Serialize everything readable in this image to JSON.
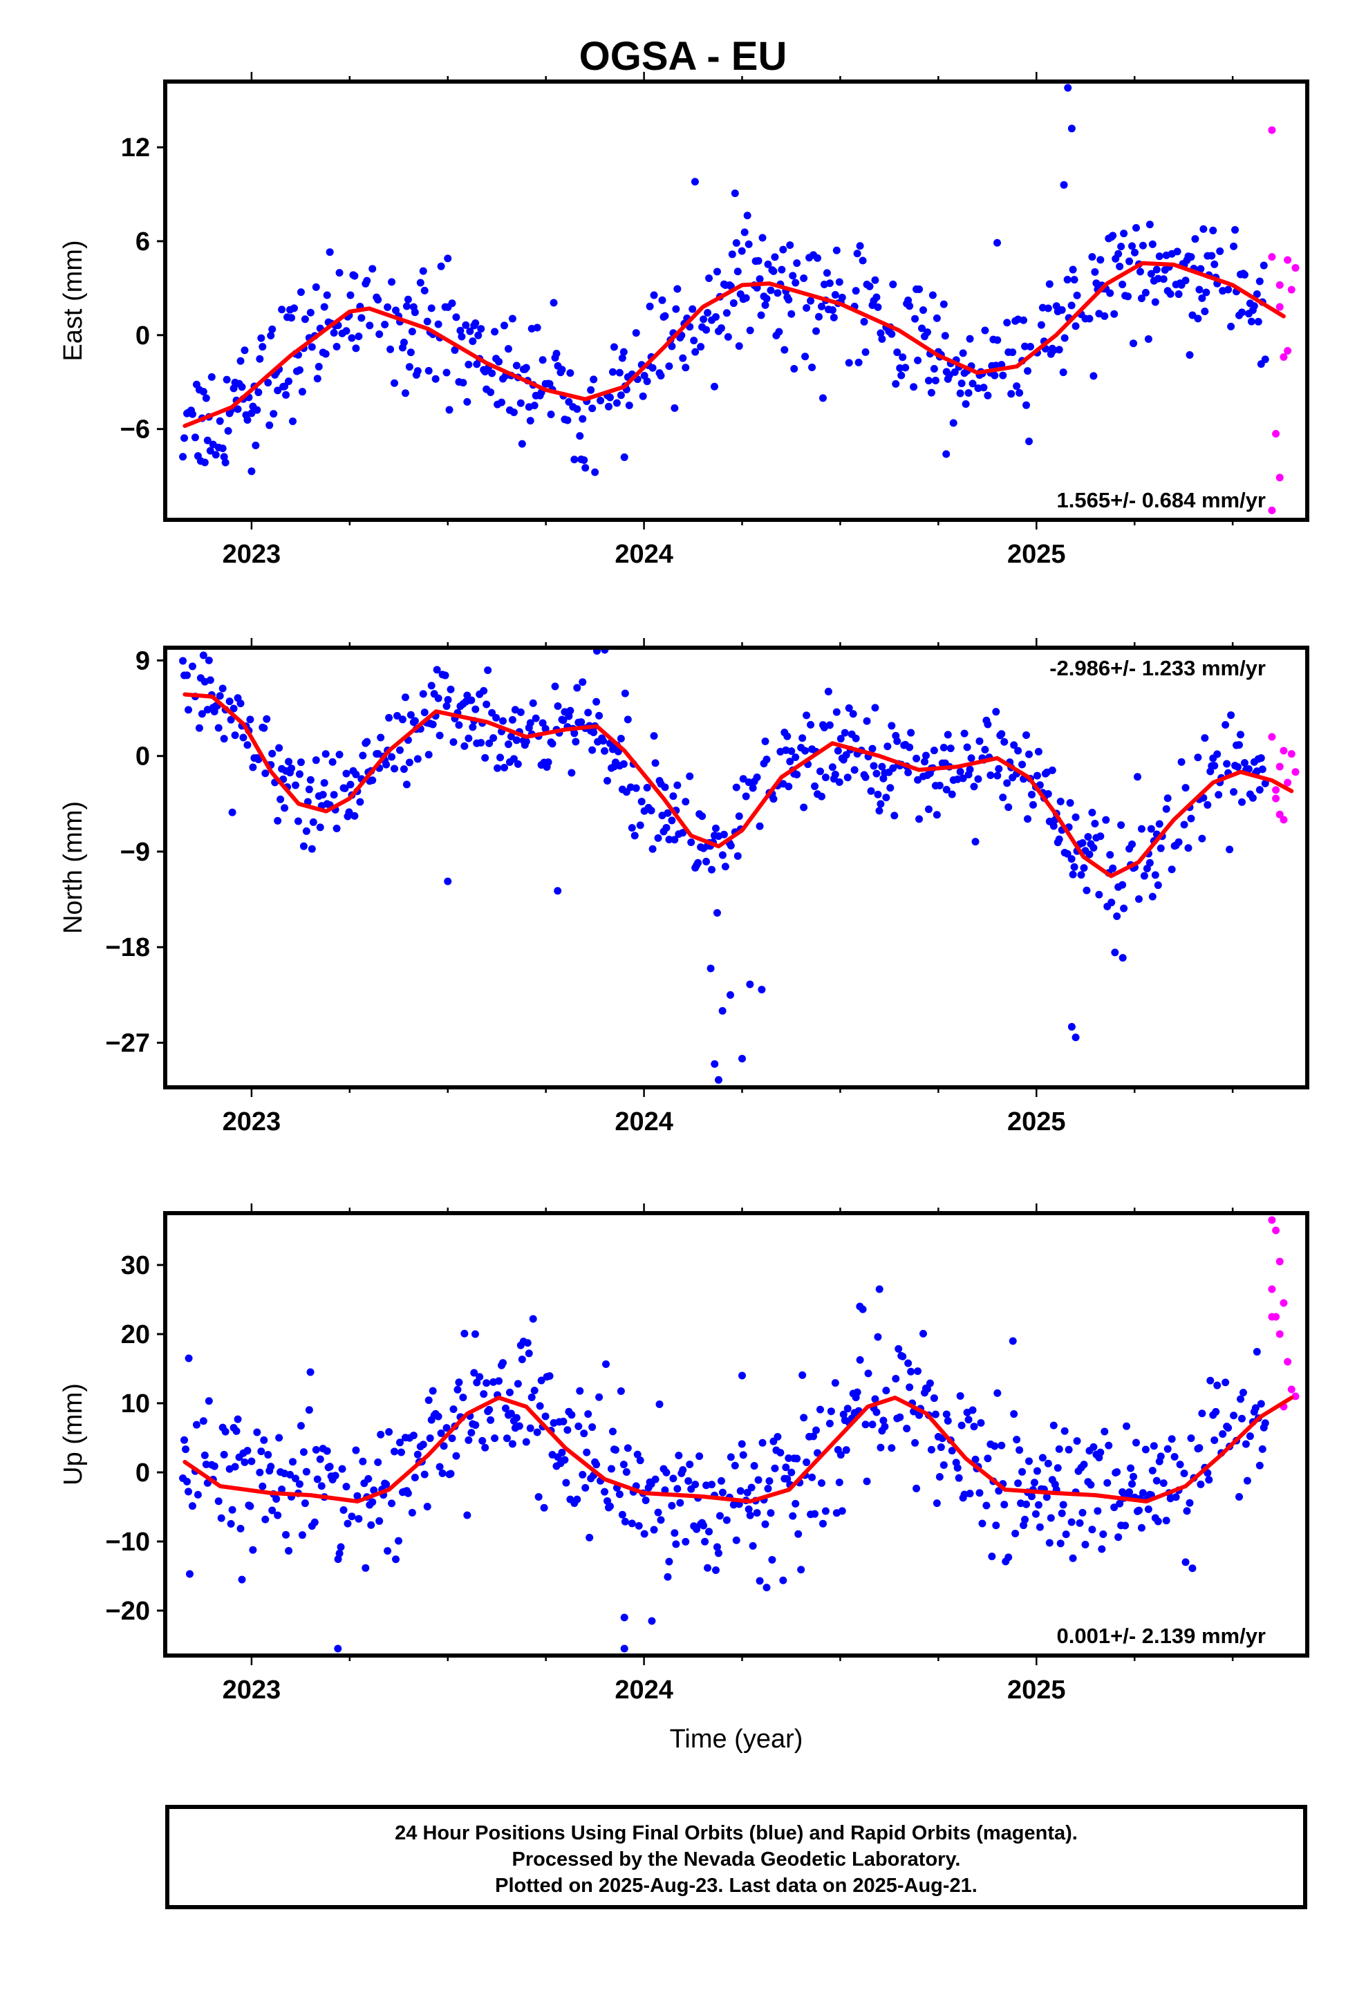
{
  "title": "OGSA - EU",
  "colors": {
    "final": "#0000ff",
    "rapid": "#ff00ff",
    "model": "#ff0000",
    "axes": "#000000"
  },
  "xlabel": "Time (year)",
  "footer": {
    "line1": "24 Hour Positions Using Final Orbits (blue) and Rapid Orbits (magenta).",
    "line2": "Processed by the Nevada Geodetic Laboratory.",
    "line3": "Plotted on 2025-Aug-23. Last data on 2025-Aug-21."
  },
  "chart_data": [
    {
      "type": "scatter",
      "ylabel": "East (mm)",
      "xlim": [
        2022.78,
        2025.69
      ],
      "ylim": [
        -11.8,
        16.2
      ],
      "yticks": [
        -6,
        0,
        6,
        12
      ],
      "ytick_labels": [
        "−6",
        "0",
        "6",
        "12"
      ],
      "xticks": [
        2023,
        2024,
        2025
      ],
      "xtick_labels": [
        "2023",
        "2024",
        "2025"
      ],
      "rate": "1.565+/- 0.684 mm/yr",
      "rate_pos": "bottom-right",
      "model_curve": [
        [
          2022.83,
          -5.8
        ],
        [
          2022.95,
          -4.6
        ],
        [
          2023.1,
          -1.3
        ],
        [
          2023.25,
          1.5
        ],
        [
          2023.3,
          1.7
        ],
        [
          2023.45,
          0.4
        ],
        [
          2023.6,
          -1.8
        ],
        [
          2023.75,
          -3.5
        ],
        [
          2023.85,
          -4.1
        ],
        [
          2023.95,
          -3.3
        ],
        [
          2024.05,
          -0.8
        ],
        [
          2024.15,
          1.8
        ],
        [
          2024.25,
          3.2
        ],
        [
          2024.32,
          3.3
        ],
        [
          2024.5,
          2.0
        ],
        [
          2024.65,
          0.3
        ],
        [
          2024.75,
          -1.3
        ],
        [
          2024.85,
          -2.4
        ],
        [
          2024.95,
          -2.0
        ],
        [
          2025.05,
          0.0
        ],
        [
          2025.18,
          3.3
        ],
        [
          2025.27,
          4.6
        ],
        [
          2025.35,
          4.5
        ],
        [
          2025.5,
          3.2
        ],
        [
          2025.63,
          1.2
        ]
      ],
      "amplitude": 1.9,
      "rapid": [
        [
          2025.6,
          5.0
        ],
        [
          2025.62,
          3.2
        ],
        [
          2025.6,
          13.1
        ],
        [
          2025.64,
          4.8
        ],
        [
          2025.63,
          -1.4
        ],
        [
          2025.61,
          -6.3
        ],
        [
          2025.62,
          -9.1
        ],
        [
          2025.6,
          -11.2
        ],
        [
          2025.65,
          2.9
        ],
        [
          2025.66,
          4.3
        ],
        [
          2025.62,
          1.8
        ],
        [
          2025.64,
          -1.0
        ]
      ],
      "extra_points": [
        [
          2023.5,
          4.9
        ],
        [
          2023.0,
          -8.7
        ],
        [
          2024.13,
          9.8
        ],
        [
          2025.08,
          15.8
        ],
        [
          2025.09,
          13.2
        ],
        [
          2025.07,
          9.6
        ],
        [
          2024.77,
          -7.6
        ],
        [
          2024.9,
          5.9
        ],
        [
          2023.95,
          -7.8
        ]
      ]
    },
    {
      "type": "scatter",
      "ylabel": "North (mm)",
      "xlim": [
        2022.78,
        2025.69
      ],
      "ylim": [
        -31.2,
        10.2
      ],
      "yticks": [
        -27,
        -18,
        -9,
        0,
        9
      ],
      "ytick_labels": [
        "−27",
        "−18",
        "−9",
        "0",
        "9"
      ],
      "xticks": [
        2023,
        2024,
        2025
      ],
      "xtick_labels": [
        "2023",
        "2024",
        "2025"
      ],
      "rate": "-2.986+/- 1.233 mm/yr",
      "rate_pos": "top-right",
      "model_curve": [
        [
          2022.83,
          5.8
        ],
        [
          2022.9,
          5.6
        ],
        [
          2022.98,
          3.0
        ],
        [
          2023.05,
          -1.5
        ],
        [
          2023.12,
          -4.5
        ],
        [
          2023.19,
          -5.2
        ],
        [
          2023.25,
          -4.0
        ],
        [
          2023.35,
          0.5
        ],
        [
          2023.47,
          4.2
        ],
        [
          2023.6,
          3.2
        ],
        [
          2023.7,
          1.8
        ],
        [
          2023.8,
          2.5
        ],
        [
          2023.88,
          2.8
        ],
        [
          2023.95,
          0.5
        ],
        [
          2024.05,
          -4.0
        ],
        [
          2024.12,
          -7.5
        ],
        [
          2024.19,
          -8.5
        ],
        [
          2024.25,
          -7.0
        ],
        [
          2024.35,
          -2.0
        ],
        [
          2024.48,
          1.2
        ],
        [
          2024.6,
          0.0
        ],
        [
          2024.7,
          -1.3
        ],
        [
          2024.8,
          -1.0
        ],
        [
          2024.9,
          -0.2
        ],
        [
          2024.98,
          -2.0
        ],
        [
          2025.05,
          -5.5
        ],
        [
          2025.12,
          -9.5
        ],
        [
          2025.19,
          -11.3
        ],
        [
          2025.26,
          -10.0
        ],
        [
          2025.35,
          -6.0
        ],
        [
          2025.45,
          -2.5
        ],
        [
          2025.52,
          -1.5
        ],
        [
          2025.6,
          -2.3
        ],
        [
          2025.65,
          -3.3
        ]
      ],
      "amplitude": 2.3,
      "rapid": [
        [
          2025.6,
          1.8
        ],
        [
          2025.62,
          -1.0
        ],
        [
          2025.61,
          -4.0
        ],
        [
          2025.63,
          0.5
        ],
        [
          2025.64,
          -2.5
        ],
        [
          2025.62,
          -5.5
        ],
        [
          2025.65,
          0.2
        ],
        [
          2025.61,
          -3.2
        ],
        [
          2025.63,
          -6.0
        ],
        [
          2025.66,
          -1.5
        ]
      ],
      "extra_points": [
        [
          2024.19,
          -30.5
        ],
        [
          2024.18,
          -29.0
        ],
        [
          2024.25,
          -28.5
        ],
        [
          2024.2,
          -24.0
        ],
        [
          2024.17,
          -20.0
        ],
        [
          2024.22,
          -22.5
        ],
        [
          2024.27,
          -21.5
        ],
        [
          2024.3,
          -22.0
        ],
        [
          2025.09,
          -25.5
        ],
        [
          2025.1,
          -26.5
        ],
        [
          2023.5,
          -11.8
        ],
        [
          2023.78,
          -12.7
        ],
        [
          2023.88,
          9.9
        ],
        [
          2023.9,
          10.0
        ],
        [
          2025.2,
          -18.5
        ],
        [
          2025.22,
          -19.0
        ]
      ]
    },
    {
      "type": "scatter",
      "ylabel": "Up (mm)",
      "xlim": [
        2022.78,
        2025.69
      ],
      "ylim": [
        -26.5,
        37.5
      ],
      "yticks": [
        -20,
        -10,
        0,
        10,
        20,
        30
      ],
      "ytick_labels": [
        "−20",
        "−10",
        "0",
        "10",
        "20",
        "30"
      ],
      "xticks": [
        2023,
        2024,
        2025
      ],
      "xtick_labels": [
        "2023",
        "2024",
        "2025"
      ],
      "rate": "0.001+/- 2.139 mm/yr",
      "rate_pos": "bottom-right",
      "model_curve": [
        [
          2022.83,
          1.5
        ],
        [
          2022.92,
          -2.0
        ],
        [
          2023.05,
          -3.0
        ],
        [
          2023.15,
          -3.3
        ],
        [
          2023.27,
          -4.2
        ],
        [
          2023.35,
          -2.5
        ],
        [
          2023.45,
          2.5
        ],
        [
          2023.55,
          8.5
        ],
        [
          2023.63,
          10.8
        ],
        [
          2023.7,
          9.5
        ],
        [
          2023.8,
          3.5
        ],
        [
          2023.9,
          -1.0
        ],
        [
          2024.0,
          -3.0
        ],
        [
          2024.15,
          -3.5
        ],
        [
          2024.27,
          -4.2
        ],
        [
          2024.37,
          -2.5
        ],
        [
          2024.47,
          3.5
        ],
        [
          2024.57,
          9.5
        ],
        [
          2024.64,
          10.8
        ],
        [
          2024.72,
          8.5
        ],
        [
          2024.82,
          2.0
        ],
        [
          2024.92,
          -2.5
        ],
        [
          2025.05,
          -3.0
        ],
        [
          2025.15,
          -3.3
        ],
        [
          2025.28,
          -4.2
        ],
        [
          2025.38,
          -2.0
        ],
        [
          2025.47,
          2.5
        ],
        [
          2025.57,
          8.0
        ],
        [
          2025.65,
          10.8
        ]
      ],
      "amplitude": 5.0,
      "rapid": [
        [
          2025.6,
          36.5
        ],
        [
          2025.61,
          35.0
        ],
        [
          2025.62,
          30.5
        ],
        [
          2025.6,
          26.5
        ],
        [
          2025.63,
          24.5
        ],
        [
          2025.6,
          22.5
        ],
        [
          2025.62,
          20.0
        ],
        [
          2025.64,
          16.0
        ],
        [
          2025.65,
          12.0
        ],
        [
          2025.63,
          9.5
        ],
        [
          2025.66,
          11.0
        ],
        [
          2025.61,
          22.5
        ]
      ],
      "extra_points": [
        [
          2023.22,
          -25.5
        ],
        [
          2023.95,
          -25.5
        ],
        [
          2023.95,
          -21.0
        ],
        [
          2024.6,
          26.5
        ],
        [
          2024.55,
          24.0
        ],
        [
          2023.57,
          20.0
        ],
        [
          2024.94,
          19.0
        ],
        [
          2022.84,
          16.5
        ],
        [
          2024.02,
          -21.5
        ],
        [
          2023.15,
          14.5
        ],
        [
          2024.25,
          14.0
        ]
      ]
    }
  ]
}
